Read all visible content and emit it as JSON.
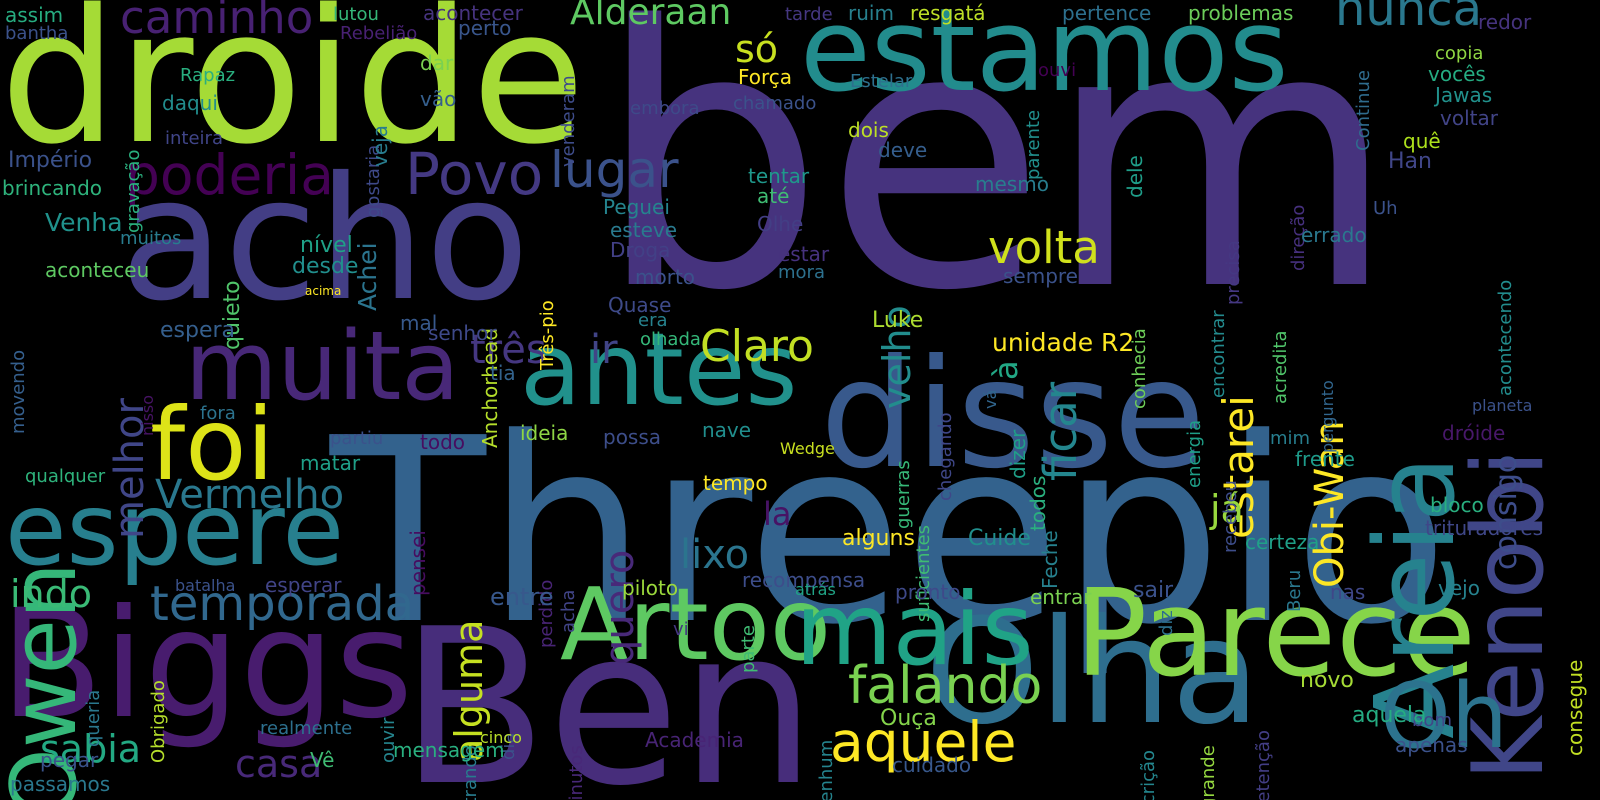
{
  "words": [
    {
      "text": "bem",
      "color": "#46337e"
    },
    {
      "text": "Threepio",
      "color": "#33628d"
    },
    {
      "text": "droide",
      "color": "#a5db36"
    },
    {
      "text": "Ben",
      "color": "#472d7b"
    },
    {
      "text": "acho",
      "color": "#433e85"
    },
    {
      "text": "estamos",
      "color": "#228c8d"
    },
    {
      "text": "Biggs",
      "color": "#481c6e"
    },
    {
      "text": "disse",
      "color": "#38598c"
    },
    {
      "text": "Olha",
      "color": "#2e6e8e"
    },
    {
      "text": "Parece",
      "color": "#86d549"
    },
    {
      "text": "Artoo",
      "color": "#5ec962"
    },
    {
      "text": "mais",
      "color": "#20a386"
    },
    {
      "text": "Owen",
      "color": "#35b779"
    },
    {
      "text": "Kenobi",
      "color": "#404688"
    },
    {
      "text": "Areia",
      "color": "#26828e"
    },
    {
      "text": "Oh",
      "color": "#2c738e"
    },
    {
      "text": "antes",
      "color": "#21918c"
    },
    {
      "text": "muita",
      "color": "#482878"
    },
    {
      "text": "espere",
      "color": "#277f8e"
    },
    {
      "text": "foi",
      "color": "#dde318"
    },
    {
      "text": "aquele",
      "color": "#fde725"
    },
    {
      "text": "falando",
      "color": "#7ad151"
    },
    {
      "text": "temporada",
      "color": "#31688e"
    },
    {
      "text": "caminho",
      "color": "#482173"
    },
    {
      "text": "poderia",
      "color": "#440154"
    },
    {
      "text": "Povo",
      "color": "#443983"
    },
    {
      "text": "lugar",
      "color": "#3b528b"
    },
    {
      "text": "Alderaan",
      "color": "#5ec962"
    },
    {
      "text": "nunca",
      "color": "#2a788e"
    },
    {
      "text": "só",
      "color": "#c8e020"
    },
    {
      "text": "volta",
      "color": "#d0e11c"
    },
    {
      "text": "ficar",
      "color": "#24868e"
    },
    {
      "text": "estarei",
      "color": "#fde725"
    },
    {
      "text": "Obi-Wan",
      "color": "#fde725"
    },
    {
      "text": "Vermelho",
      "color": "#2a788e"
    },
    {
      "text": "melhor",
      "color": "#404688"
    },
    {
      "text": "Claro",
      "color": "#c2df23"
    },
    {
      "text": "três",
      "color": "#453781"
    },
    {
      "text": "ir",
      "color": "#414487"
    },
    {
      "text": "alguma",
      "color": "#c5e021"
    },
    {
      "text": "quero",
      "color": "#482979"
    },
    {
      "text": "lixo",
      "color": "#2b758e"
    },
    {
      "text": "indo",
      "color": "#3aba76"
    },
    {
      "text": "sabia",
      "color": "#23a983"
    },
    {
      "text": "casa",
      "color": "#482979"
    },
    {
      "text": "velho",
      "color": "#228d8d"
    },
    {
      "text": "já",
      "color": "#98d83e"
    },
    {
      "text": "consigo",
      "color": "#3d4d8a"
    },
    {
      "text": "unidade R2",
      "color": "#fde725"
    },
    {
      "text": "à",
      "color": "#22a785"
    },
    {
      "text": "la",
      "color": "#471365"
    },
    {
      "text": "Luke",
      "color": "#addc30"
    },
    {
      "text": "nível",
      "color": "#1fa187"
    },
    {
      "text": "desde",
      "color": "#218f8d"
    },
    {
      "text": "quieto",
      "color": "#50c46a"
    },
    {
      "text": "Achei",
      "color": "#2b748e"
    },
    {
      "text": "Venha",
      "color": "#20928c"
    },
    {
      "text": "muitos",
      "color": "#287c8e"
    },
    {
      "text": "aconteceu",
      "color": "#5ec962"
    },
    {
      "text": "espera",
      "color": "#355f8d"
    },
    {
      "text": "Império",
      "color": "#3b528b"
    },
    {
      "text": "brincando",
      "color": "#2eb37c"
    },
    {
      "text": "assim",
      "color": "#27ad81"
    },
    {
      "text": "bantha",
      "color": "#3b528b"
    },
    {
      "text": "lutou",
      "color": "#35b779"
    },
    {
      "text": "Rebelião",
      "color": "#482173"
    },
    {
      "text": "acontecer",
      "color": "#46337e"
    },
    {
      "text": "perto",
      "color": "#39568c"
    },
    {
      "text": "gravação",
      "color": "#2ab07f"
    },
    {
      "text": "Rapaz",
      "color": "#29af7f"
    },
    {
      "text": "daqui",
      "color": "#228d8d"
    },
    {
      "text": "inteira",
      "color": "#404588"
    },
    {
      "text": "dar",
      "color": "#7ad151"
    },
    {
      "text": "gostaria",
      "color": "#3e4989"
    },
    {
      "text": "veja",
      "color": "#287d8e"
    },
    {
      "text": "vão",
      "color": "#355f8d"
    },
    {
      "text": "embora",
      "color": "#3e4a89"
    },
    {
      "text": "venderam",
      "color": "#3e4c8a"
    },
    {
      "text": "tarde",
      "color": "#453781"
    },
    {
      "text": "ruim",
      "color": "#27808e"
    },
    {
      "text": "resgatá",
      "color": "#bddf26"
    },
    {
      "text": "pertence",
      "color": "#2d708e"
    },
    {
      "text": "problemas",
      "color": "#6ccd5a"
    },
    {
      "text": "Força",
      "color": "#fde725"
    },
    {
      "text": "Estelar",
      "color": "#2d708e"
    },
    {
      "text": "chamado",
      "color": "#3b528b"
    },
    {
      "text": "ouvi",
      "color": "#440154"
    },
    {
      "text": "parente",
      "color": "#218f8d"
    },
    {
      "text": "Continue",
      "color": "#2f6c8e"
    },
    {
      "text": "copia",
      "color": "#90d743"
    },
    {
      "text": "vocês",
      "color": "#25ac82"
    },
    {
      "text": "Jawas",
      "color": "#21918c"
    },
    {
      "text": "voltar",
      "color": "#414487"
    },
    {
      "text": "redor",
      "color": "#46337e"
    },
    {
      "text": "quê",
      "color": "#ade11c"
    },
    {
      "text": "Han",
      "color": "#404688"
    },
    {
      "text": "direção",
      "color": "#46307e"
    },
    {
      "text": "acontecendo",
      "color": "#228c8d"
    },
    {
      "text": "dois",
      "color": "#bddf26"
    },
    {
      "text": "deve",
      "color": "#355e8d"
    },
    {
      "text": "tentar",
      "color": "#1f988b"
    },
    {
      "text": "até",
      "color": "#3fbc73"
    },
    {
      "text": "Olhe",
      "color": "#433e85"
    },
    {
      "text": "estar",
      "color": "#46327e"
    },
    {
      "text": "mora",
      "color": "#2d718e"
    },
    {
      "text": "mesmo",
      "color": "#287d8e"
    },
    {
      "text": "dele",
      "color": "#1f9e89"
    },
    {
      "text": "Peguei",
      "color": "#25848e"
    },
    {
      "text": "esteve",
      "color": "#297a8e"
    },
    {
      "text": "Droga",
      "color": "#424086"
    },
    {
      "text": "morto",
      "color": "#3b528b"
    },
    {
      "text": "Quase",
      "color": "#3e4a89"
    },
    {
      "text": "era",
      "color": "#26828e"
    },
    {
      "text": "olhada",
      "color": "#35b779"
    },
    {
      "text": "Anchorhead",
      "color": "#b5de2b"
    },
    {
      "text": "Três-pio",
      "color": "#fde725"
    },
    {
      "text": "acima",
      "color": "#fde725"
    },
    {
      "text": "sempre",
      "color": "#3b528b"
    },
    {
      "text": "conhecia",
      "color": "#6ece58"
    },
    {
      "text": "encontrar",
      "color": "#238a8d"
    },
    {
      "text": "precisa",
      "color": "#453882"
    },
    {
      "text": "acredita",
      "color": "#50c46a"
    },
    {
      "text": "errado",
      "color": "#2a788e"
    },
    {
      "text": "Uh",
      "color": "#3b528b"
    },
    {
      "text": "pergunto",
      "color": "#31668e"
    },
    {
      "text": "mal",
      "color": "#37598c"
    },
    {
      "text": "senhor",
      "color": "#3e4989"
    },
    {
      "text": "tia",
      "color": "#33638d"
    },
    {
      "text": "Feche",
      "color": "#26818e"
    },
    {
      "text": "todos",
      "color": "#2ab07f"
    },
    {
      "text": "dizer",
      "color": "#1fa088"
    },
    {
      "text": "guerras",
      "color": "#37b878"
    },
    {
      "text": "chegando",
      "color": "#3f4788"
    },
    {
      "text": "vá",
      "color": "#31668e"
    },
    {
      "text": "energia",
      "color": "#1f9f88"
    },
    {
      "text": "ideia",
      "color": "#8ed645"
    },
    {
      "text": "possa",
      "color": "#3d4e8a"
    },
    {
      "text": "nave",
      "color": "#218e8d"
    },
    {
      "text": "Wedge",
      "color": "#c8e020"
    },
    {
      "text": "tempo",
      "color": "#fde725"
    },
    {
      "text": "alguns",
      "color": "#fde725"
    },
    {
      "text": "Cuide",
      "color": "#218f8d"
    },
    {
      "text": "suficientes",
      "color": "#3fbc73"
    },
    {
      "text": "recebeu",
      "color": "#3d4d8a"
    },
    {
      "text": "mim",
      "color": "#277e8e"
    },
    {
      "text": "frente",
      "color": "#1e9b8a"
    },
    {
      "text": "dróide",
      "color": "#48186a"
    },
    {
      "text": "planeta",
      "color": "#3b528b"
    },
    {
      "text": "Beru",
      "color": "#2a788e"
    },
    {
      "text": "bloco",
      "color": "#29af7f"
    },
    {
      "text": "trituradores",
      "color": "#3f4788"
    },
    {
      "text": "consegue",
      "color": "#c2df23"
    },
    {
      "text": "vejo",
      "color": "#26828e"
    },
    {
      "text": "certeza",
      "color": "#1fa088"
    },
    {
      "text": "perdido",
      "color": "#482475"
    },
    {
      "text": "acha",
      "color": "#414487"
    },
    {
      "text": "pensei",
      "color": "#470d60"
    },
    {
      "text": "fora",
      "color": "#2c738e"
    },
    {
      "text": "partiu",
      "color": "#3b528b"
    },
    {
      "text": "todo",
      "color": "#470d60"
    },
    {
      "text": "matar",
      "color": "#1fa088"
    },
    {
      "text": "qualquer",
      "color": "#2eb37c"
    },
    {
      "text": "movendo",
      "color": "#355f8d"
    },
    {
      "text": "nisso",
      "color": "#471365"
    },
    {
      "text": "batalha",
      "color": "#3b528b"
    },
    {
      "text": "esperar",
      "color": "#414487"
    },
    {
      "text": "piloto",
      "color": "#9bd93c"
    },
    {
      "text": "entre",
      "color": "#38588c"
    },
    {
      "text": "recompensa",
      "color": "#3d4d8a"
    },
    {
      "text": "atrás",
      "color": "#20a486"
    },
    {
      "text": "pronto",
      "color": "#3e4989"
    },
    {
      "text": "entrar",
      "color": "#7ad151"
    },
    {
      "text": "sair",
      "color": "#3b528b"
    },
    {
      "text": "nas",
      "color": "#3f4788"
    },
    {
      "text": "vi",
      "color": "#453781"
    },
    {
      "text": "parte",
      "color": "#3fbc73"
    },
    {
      "text": "queria",
      "color": "#2a788e"
    },
    {
      "text": "Obrigado",
      "color": "#b5de2b"
    },
    {
      "text": "ouvir",
      "color": "#25858e"
    },
    {
      "text": "realmente",
      "color": "#2d708e"
    },
    {
      "text": "entrando",
      "color": "#287c8e"
    },
    {
      "text": "dia",
      "color": "#3b528b"
    },
    {
      "text": "minutos",
      "color": "#482878"
    },
    {
      "text": "cinco",
      "color": "#b8de29"
    },
    {
      "text": "nenhum",
      "color": "#25848e"
    },
    {
      "text": "Ouça",
      "color": "#84d44b"
    },
    {
      "text": "Academia",
      "color": "#482475"
    },
    {
      "text": "mensagem",
      "color": "#29af7f"
    },
    {
      "text": "Vê",
      "color": "#3fbc73"
    },
    {
      "text": "pegar",
      "color": "#3a538b"
    },
    {
      "text": "passamos",
      "color": "#2a788e"
    },
    {
      "text": "cuidado",
      "color": "#38588c"
    },
    {
      "text": "inscrição",
      "color": "#24868e"
    },
    {
      "text": "grande",
      "color": "#95d840"
    },
    {
      "text": "detenção",
      "color": "#433e85"
    },
    {
      "text": "diz",
      "color": "#2d708e"
    },
    {
      "text": "novo",
      "color": "#a5db36"
    },
    {
      "text": "bom",
      "color": "#404688"
    },
    {
      "text": "aquela",
      "color": "#25ac82"
    },
    {
      "text": "apenas",
      "color": "#3b528b"
    }
  ]
}
